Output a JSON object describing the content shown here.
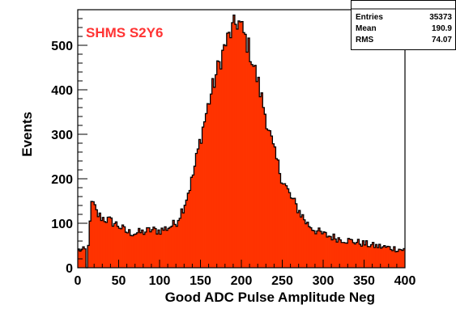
{
  "chart_data": {
    "type": "histogram",
    "title": "",
    "annotation": "SHMS S2Y6",
    "xlabel": "Good ADC Pulse Amplitude Neg",
    "ylabel": "Events",
    "xlim": [
      0,
      400
    ],
    "ylim": [
      0,
      580
    ],
    "xticks": [
      0,
      50,
      100,
      150,
      200,
      250,
      300,
      350,
      400
    ],
    "yticks": [
      0,
      100,
      200,
      300,
      400,
      500
    ],
    "bin_width": 2,
    "fill_color": "#ff3300",
    "line_color": "#000000",
    "annotation_color": "#ff3333",
    "stats": {
      "entries_label": "Entries",
      "entries_value": "35373",
      "mean_label": "Mean",
      "mean_value": "190.9",
      "rms_label": "RMS",
      "rms_value": "74.07"
    },
    "profile": [
      [
        10,
        0
      ],
      [
        12,
        0
      ],
      [
        14,
        95
      ],
      [
        16,
        130
      ],
      [
        18,
        148
      ],
      [
        20,
        138
      ],
      [
        24,
        120
      ],
      [
        30,
        112
      ],
      [
        40,
        105
      ],
      [
        50,
        95
      ],
      [
        60,
        80
      ],
      [
        70,
        78
      ],
      [
        80,
        80
      ],
      [
        90,
        85
      ],
      [
        100,
        83
      ],
      [
        110,
        90
      ],
      [
        120,
        100
      ],
      [
        130,
        140
      ],
      [
        140,
        200
      ],
      [
        150,
        290
      ],
      [
        160,
        370
      ],
      [
        170,
        440
      ],
      [
        180,
        500
      ],
      [
        190,
        540
      ],
      [
        196,
        555
      ],
      [
        200,
        540
      ],
      [
        210,
        490
      ],
      [
        220,
        420
      ],
      [
        230,
        340
      ],
      [
        240,
        260
      ],
      [
        250,
        200
      ],
      [
        260,
        160
      ],
      [
        270,
        130
      ],
      [
        280,
        100
      ],
      [
        290,
        85
      ],
      [
        300,
        75
      ],
      [
        320,
        65
      ],
      [
        340,
        58
      ],
      [
        360,
        50
      ],
      [
        380,
        45
      ],
      [
        400,
        40
      ]
    ]
  }
}
